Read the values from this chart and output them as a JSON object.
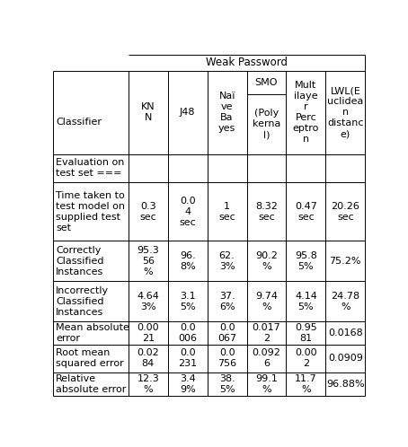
{
  "title": "Weak Password",
  "col_headers_top": [
    "KN\nN",
    "J48",
    "Naï\nve\nBa\nyes",
    "SMO",
    "Mult\nilaye\nr\nPerc\neptro\nn",
    "LWL(E\nuclidea\nn\ndistanc\ne)"
  ],
  "col_headers_bot": [
    "",
    "",
    "",
    "(Poly\nkerna\nl)",
    "",
    ""
  ],
  "row_headers": [
    "Classifier",
    "Evaluation on\ntest set ===",
    "Time taken to\ntest model on\nsupplied test\nset",
    "Correctly\nClassified\nInstances",
    "Incorrectly\nClassified\nInstances",
    "Mean absolute\nerror",
    "Root mean\nsquared error",
    "Relative\nabsolute error"
  ],
  "cell_data": [
    [
      "",
      "0.3\nsec",
      "0.0\n4\nsec",
      "1\nsec",
      "8.32\nsec",
      "0.47\nsec",
      "20.26\nsec"
    ],
    [
      "",
      "95.3\n56\n%",
      "96.\n8%",
      "62.\n3%",
      "90.2\n%",
      "95.8\n5%",
      "75.2%"
    ],
    [
      "",
      "4.64\n3%",
      "3.1\n5%",
      "37.\n6%",
      "9.74\n%",
      "4.14\n5%",
      "24.78\n%"
    ],
    [
      "",
      "0.00\n21",
      "0.0\n006",
      "0.0\n067",
      "0.017\n2",
      "0.95\n81",
      "0.0168"
    ],
    [
      "",
      "0.02\n84",
      "0.0\n231",
      "0.0\n756",
      "0.092\n6",
      "0.00\n2",
      "0.0909"
    ],
    [
      "",
      "12.3\n%",
      "3.4\n9%",
      "38.\n5%",
      "99.1\n%",
      "11.7\n%",
      "96.88%"
    ]
  ],
  "bg_color": "#ffffff",
  "text_color": "#000000",
  "line_color": "#000000",
  "font_size": 8.0
}
